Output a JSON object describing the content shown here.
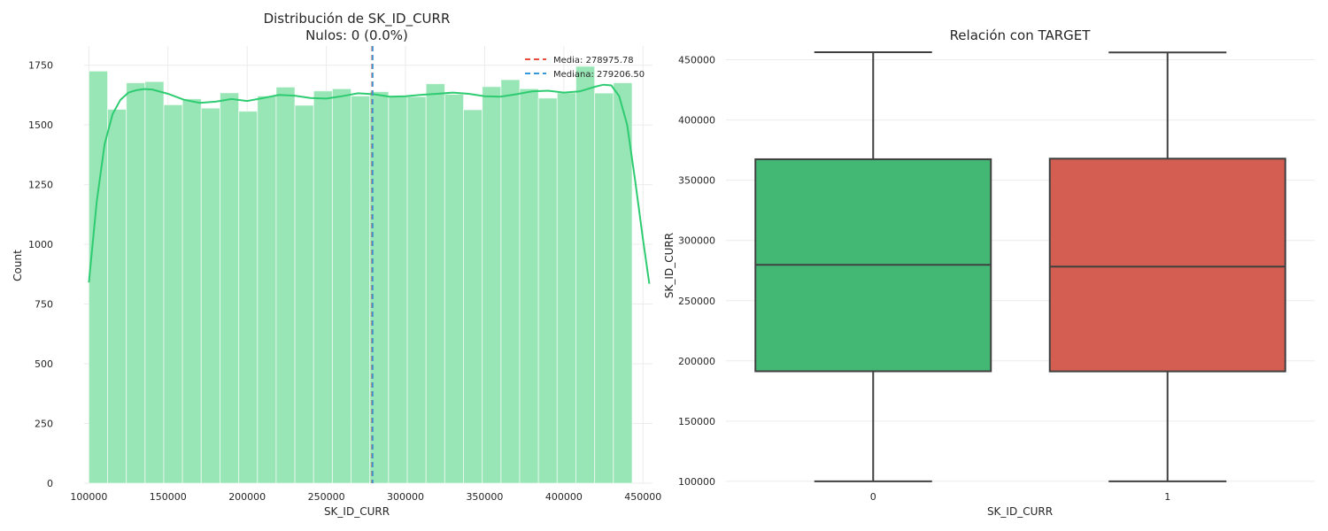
{
  "colors": {
    "hist_fill": "#98e5b5",
    "kde_line": "#2ecc71",
    "mean_line": "#e74c3c",
    "median_line": "#3498db",
    "box_0": "#43b875",
    "box_1": "#d35e51",
    "box_edge": "#404040",
    "grid": "#ebebeb"
  },
  "chart_data": [
    {
      "type": "histogram",
      "title": "Distribución de SK_ID_CURR",
      "subtitle": "Nulos: 0 (0.0%)",
      "xlabel": "SK_ID_CURR",
      "ylabel": "Count",
      "xlim": [
        97000,
        456000
      ],
      "ylim": [
        0,
        1830
      ],
      "xticks": [
        100000,
        150000,
        200000,
        250000,
        300000,
        350000,
        400000,
        450000
      ],
      "xtick_labels": [
        "100000",
        "150000",
        "200000",
        "250000",
        "300000",
        "350000",
        "400000",
        "450000"
      ],
      "yticks": [
        0,
        250,
        500,
        750,
        1000,
        1250,
        1500,
        1750
      ],
      "ytick_labels": [
        "0",
        "250",
        "500",
        "750",
        "1000",
        "1250",
        "1500",
        "1750"
      ],
      "bin_start": 100002,
      "bin_width": 11832,
      "counts": [
        1725,
        1565,
        1676,
        1681,
        1584,
        1609,
        1570,
        1634,
        1557,
        1621,
        1658,
        1582,
        1642,
        1651,
        1621,
        1639,
        1622,
        1618,
        1672,
        1628,
        1563,
        1660,
        1689,
        1651,
        1612,
        1634,
        1745,
        1633,
        1676
      ],
      "kde": {
        "x": [
          100000,
          105000,
          110000,
          115000,
          120000,
          125000,
          130000,
          135000,
          140000,
          150000,
          160000,
          170000,
          180000,
          190000,
          200000,
          210000,
          220000,
          230000,
          240000,
          250000,
          260000,
          270000,
          280000,
          290000,
          300000,
          310000,
          320000,
          330000,
          340000,
          350000,
          360000,
          370000,
          380000,
          390000,
          400000,
          410000,
          420000,
          425000,
          430000,
          435000,
          440000,
          445000,
          450000,
          454000
        ],
        "y": [
          840,
          1180,
          1420,
          1545,
          1605,
          1635,
          1645,
          1650,
          1648,
          1630,
          1605,
          1592,
          1597,
          1608,
          1600,
          1612,
          1625,
          1622,
          1612,
          1610,
          1620,
          1632,
          1628,
          1618,
          1620,
          1626,
          1630,
          1635,
          1630,
          1620,
          1618,
          1628,
          1640,
          1643,
          1635,
          1640,
          1660,
          1668,
          1665,
          1620,
          1500,
          1270,
          1020,
          835
        ]
      },
      "mean": 278975.78,
      "median": 279206.5,
      "legend": [
        "Media: 278975.78",
        "Mediana: 279206.50"
      ],
      "legend_position": "upper right",
      "grid": true
    },
    {
      "type": "box",
      "title": "Relación con TARGET",
      "xlabel": "SK_ID_CURR",
      "ylabel": "SK_ID_CURR",
      "categories": [
        "0",
        "1"
      ],
      "ylim": [
        97000,
        457000
      ],
      "yticks": [
        100000,
        150000,
        200000,
        250000,
        300000,
        350000,
        400000,
        450000
      ],
      "ytick_labels": [
        "100000",
        "150000",
        "200000",
        "250000",
        "300000",
        "350000",
        "400000",
        "450000"
      ],
      "boxes": [
        {
          "category": "0",
          "whisker_low": 100002,
          "q1": 191400,
          "median": 279800,
          "q3": 367400,
          "whisker_high": 456255
        },
        {
          "category": "1",
          "whisker_low": 100047,
          "q1": 191300,
          "median": 278300,
          "q3": 367900,
          "whisker_high": 456100
        }
      ],
      "grid": true
    }
  ]
}
